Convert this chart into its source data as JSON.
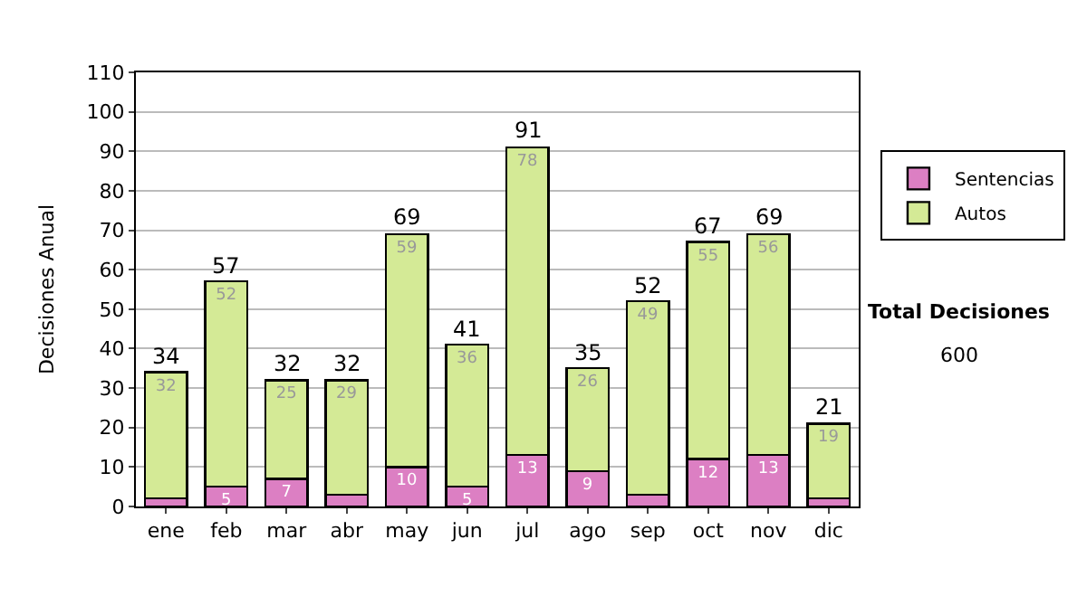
{
  "chart_data": {
    "type": "bar",
    "stacked": true,
    "ylabel": "Decisiones Anual",
    "categories": [
      "ene",
      "feb",
      "mar",
      "abr",
      "may",
      "jun",
      "jul",
      "ago",
      "sep",
      "oct",
      "nov",
      "dic"
    ],
    "series": [
      {
        "name": "Sentencias",
        "color": "#dc7fc3",
        "values": [
          2,
          5,
          7,
          3,
          10,
          5,
          13,
          9,
          3,
          12,
          13,
          2
        ],
        "value_labels": [
          null,
          "5",
          "7",
          null,
          "10",
          "5",
          "13",
          "9",
          null,
          "12",
          "13",
          null
        ]
      },
      {
        "name": "Autos",
        "color": "#d4ea96",
        "values": [
          32,
          52,
          25,
          29,
          59,
          36,
          78,
          26,
          49,
          55,
          56,
          19
        ],
        "value_labels": [
          "32",
          "52",
          "25",
          "29",
          "59",
          "36",
          "78",
          "26",
          "49",
          "55",
          "56",
          "19"
        ]
      }
    ],
    "totals": [
      "34",
      "57",
      "32",
      "32",
      "69",
      "41",
      "91",
      "35",
      "52",
      "67",
      "69",
      "21"
    ],
    "ylim": [
      0,
      110
    ],
    "yticks": [
      0,
      10,
      20,
      30,
      40,
      50,
      60,
      70,
      80,
      90,
      100,
      110
    ],
    "grid": "y",
    "legend": "right",
    "annotations": [
      "Total Decisiones",
      "600"
    ]
  }
}
